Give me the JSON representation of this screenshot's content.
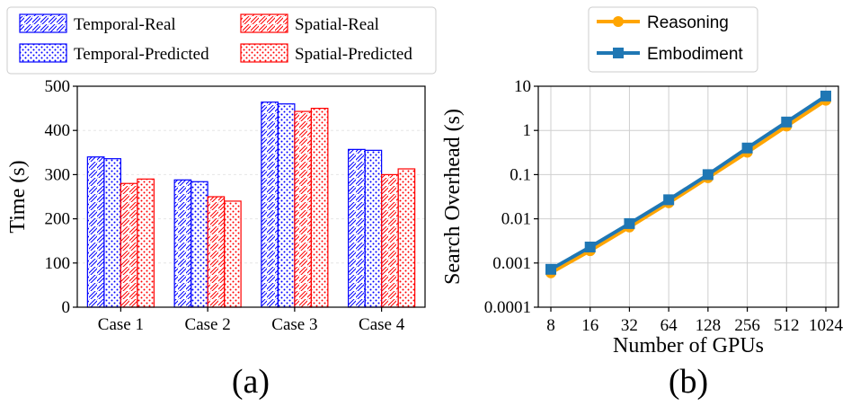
{
  "chart_data": [
    {
      "type": "bar",
      "panel_label": "(a)",
      "title": "",
      "xlabel": "",
      "ylabel": "Time (s)",
      "ylim": [
        0,
        500
      ],
      "yticks": [
        0,
        100,
        200,
        300,
        400,
        500
      ],
      "grid": "horizontal",
      "categories": [
        "Case 1",
        "Case 2",
        "Case 3",
        "Case 4"
      ],
      "series": [
        {
          "name": "Temporal-Real",
          "color": "#0000ff",
          "pattern": "hatch",
          "values": [
            340,
            288,
            464,
            357
          ]
        },
        {
          "name": "Temporal-Predicted",
          "color": "#0000ff",
          "pattern": "dots",
          "values": [
            336,
            284,
            460,
            355
          ]
        },
        {
          "name": "Spatial-Real",
          "color": "#ff0000",
          "pattern": "hatch",
          "values": [
            280,
            250,
            443,
            300
          ]
        },
        {
          "name": "Spatial-Predicted",
          "color": "#ff0000",
          "pattern": "dots",
          "values": [
            290,
            240,
            450,
            313
          ]
        }
      ],
      "legend_position": "top"
    },
    {
      "type": "line",
      "panel_label": "(b)",
      "title": "",
      "xlabel": "Number of GPUs",
      "ylabel": "Search Overhead (s)",
      "yscale": "log",
      "ylim": [
        0.0001,
        10
      ],
      "ytick_labels": [
        "0.0001",
        "0.001",
        "0.01",
        "0.1",
        "1",
        "10"
      ],
      "x": [
        "8",
        "16",
        "32",
        "64",
        "128",
        "256",
        "512",
        "1024"
      ],
      "grid": "both",
      "series": [
        {
          "name": "Reasoning",
          "color": "#ffa500",
          "marker": "circle",
          "values": [
            0.0006,
            0.0019,
            0.0065,
            0.023,
            0.085,
            0.32,
            1.25,
            4.8
          ]
        },
        {
          "name": "Embodiment",
          "color": "#1f77b4",
          "marker": "square",
          "values": [
            0.00072,
            0.0023,
            0.0078,
            0.027,
            0.1,
            0.4,
            1.55,
            6.0
          ]
        }
      ],
      "legend_position": "top"
    }
  ]
}
